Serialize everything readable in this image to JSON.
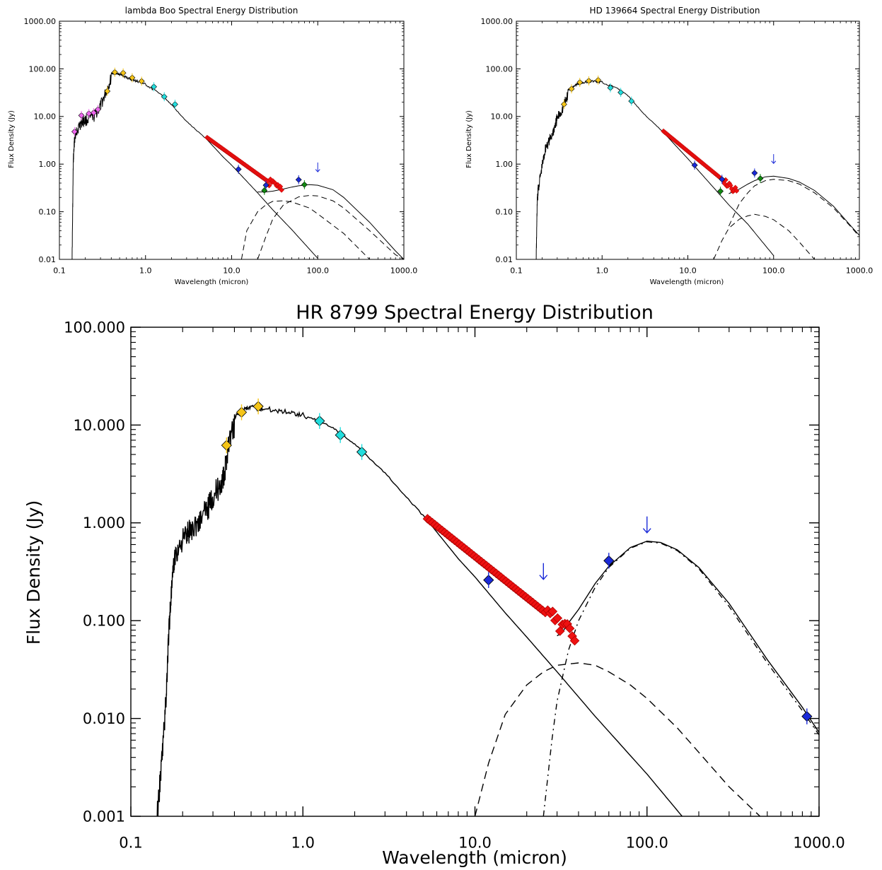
{
  "chart_data": [
    {
      "id": "lambda_boo",
      "type": "scatter",
      "title": "lambda Boo Spectral Energy Distribution",
      "xlabel": "Wavelength (micron)",
      "ylabel": "Flux Density (Jy)",
      "xlog": true,
      "ylog": true,
      "xlim": [
        0.1,
        1000
      ],
      "ylim": [
        0.01,
        1000
      ],
      "xticks": [
        {
          "v": 0.1,
          "label": "0.1"
        },
        {
          "v": 1,
          "label": "1.0"
        },
        {
          "v": 10,
          "label": "10.0"
        },
        {
          "v": 100,
          "label": "100.0"
        },
        {
          "v": 1000,
          "label": "1000.0"
        }
      ],
      "yticks": [
        {
          "v": 0.01,
          "label": "0.01"
        },
        {
          "v": 0.1,
          "label": "0.10"
        },
        {
          "v": 1,
          "label": "1.00"
        },
        {
          "v": 10,
          "label": "10.00"
        },
        {
          "v": 100,
          "label": "100.00"
        },
        {
          "v": 1000,
          "label": "1000.00"
        }
      ],
      "photosphere": {
        "x": [
          0.14,
          0.145,
          0.15,
          0.16,
          0.18,
          0.2,
          0.25,
          0.3,
          0.35,
          0.4,
          0.45,
          0.5,
          0.6,
          0.7,
          0.8,
          1,
          1.5,
          2,
          3,
          5,
          8,
          10,
          20,
          30,
          50,
          100
        ],
        "y": [
          0.01,
          1.5,
          4.5,
          7,
          10,
          11,
          13,
          22,
          45,
          85,
          87,
          80,
          70,
          62,
          58,
          50,
          30,
          18,
          8,
          3.5,
          1.4,
          0.95,
          0.25,
          0.11,
          0.042,
          0.0105
        ]
      },
      "components": [
        {
          "style": "dashed",
          "x": [
            13,
            15,
            20,
            25,
            30,
            40,
            50,
            80,
            100,
            200,
            400,
            600
          ],
          "y": [
            0.01,
            0.04,
            0.1,
            0.14,
            0.165,
            0.17,
            0.16,
            0.12,
            0.09,
            0.035,
            0.01,
            0.004
          ]
        },
        {
          "style": "dashed",
          "x": [
            20,
            25,
            30,
            40,
            60,
            80,
            100,
            150,
            200,
            400,
            800,
            1000
          ],
          "y": [
            0.01,
            0.03,
            0.07,
            0.14,
            0.205,
            0.22,
            0.215,
            0.17,
            0.12,
            0.04,
            0.0125,
            0.01
          ]
        }
      ],
      "total": {
        "x": [
          20,
          25,
          30,
          40,
          50,
          60,
          80,
          100,
          150,
          200,
          400,
          800,
          1000
        ],
        "y": [
          0.26,
          0.26,
          0.27,
          0.3,
          0.33,
          0.35,
          0.37,
          0.36,
          0.29,
          0.2,
          0.06,
          0.015,
          0.01
        ]
      },
      "spectrum": {
        "x1": 5.2,
        "x2": 38,
        "y1": 3.6,
        "y2": 0.27
      },
      "points": [
        {
          "x": 0.15,
          "y": 4.8,
          "color": "#ee66ee"
        },
        {
          "x": 0.18,
          "y": 10.5,
          "color": "#ee66ee"
        },
        {
          "x": 0.22,
          "y": 11.5,
          "color": "#ee66ee"
        },
        {
          "x": 0.25,
          "y": 12,
          "color": "#ee66ee"
        },
        {
          "x": 0.28,
          "y": 14,
          "color": "#ee66ee"
        },
        {
          "x": 0.36,
          "y": 34,
          "color": "#f5c518"
        },
        {
          "x": 0.44,
          "y": 85,
          "color": "#f5c518"
        },
        {
          "x": 0.55,
          "y": 82,
          "color": "#f5c518"
        },
        {
          "x": 0.7,
          "y": 65,
          "color": "#f5c518"
        },
        {
          "x": 0.9,
          "y": 55,
          "color": "#f5c518"
        },
        {
          "x": 1.25,
          "y": 42,
          "color": "#22dddd"
        },
        {
          "x": 1.65,
          "y": 26,
          "color": "#22dddd"
        },
        {
          "x": 2.2,
          "y": 18,
          "color": "#22dddd"
        },
        {
          "x": 12,
          "y": 0.78,
          "color": "#1a2ad8"
        },
        {
          "x": 25,
          "y": 0.36,
          "color": "#1a2ad8"
        },
        {
          "x": 60,
          "y": 0.47,
          "color": "#1a2ad8"
        },
        {
          "x": 24,
          "y": 0.28,
          "color": "#118811"
        },
        {
          "x": 70,
          "y": 0.37,
          "color": "#118811"
        }
      ],
      "upper_limits": [
        {
          "x": 100,
          "y": 0.8
        }
      ]
    },
    {
      "id": "hd_139664",
      "type": "scatter",
      "title": "HD 139664 Spectral Energy Distribution",
      "xlabel": "Wavelength (micron)",
      "ylabel": "Flux Density (Jy)",
      "xlog": true,
      "ylog": true,
      "xlim": [
        0.1,
        1000
      ],
      "ylim": [
        0.01,
        1000
      ],
      "xticks": [
        {
          "v": 0.1,
          "label": "0.1"
        },
        {
          "v": 1,
          "label": "1.0"
        },
        {
          "v": 10,
          "label": "10.0"
        },
        {
          "v": 100,
          "label": "100.0"
        },
        {
          "v": 1000,
          "label": "1000.0"
        }
      ],
      "yticks": [
        {
          "v": 0.01,
          "label": "0.01"
        },
        {
          "v": 0.1,
          "label": "0.10"
        },
        {
          "v": 1,
          "label": "1.00"
        },
        {
          "v": 10,
          "label": "10.00"
        },
        {
          "v": 100,
          "label": "100.00"
        },
        {
          "v": 1000,
          "label": "1000.00"
        }
      ],
      "photosphere": {
        "x": [
          0.17,
          0.175,
          0.18,
          0.2,
          0.22,
          0.25,
          0.28,
          0.3,
          0.35,
          0.4,
          0.5,
          0.6,
          0.8,
          1,
          1.5,
          2,
          3,
          5,
          8,
          10,
          20,
          30,
          50,
          100
        ],
        "y": [
          0.01,
          0.2,
          0.4,
          1.2,
          3,
          4.5,
          8,
          12,
          20,
          38,
          50,
          55,
          58,
          55,
          40,
          28,
          12,
          5,
          2,
          1.3,
          0.32,
          0.14,
          0.055,
          0.012
        ]
      },
      "components": [
        {
          "style": "dashed",
          "x": [
            20,
            25,
            30,
            40,
            50,
            60,
            80,
            100,
            150,
            200,
            300,
            400
          ],
          "y": [
            0.01,
            0.025,
            0.045,
            0.07,
            0.082,
            0.088,
            0.08,
            0.068,
            0.04,
            0.023,
            0.01,
            0.0055
          ]
        },
        {
          "style": "dashed",
          "x": [
            30,
            40,
            50,
            60,
            80,
            100,
            150,
            200,
            300,
            500,
            800,
            1000
          ],
          "y": [
            0.05,
            0.15,
            0.25,
            0.35,
            0.45,
            0.48,
            0.45,
            0.38,
            0.25,
            0.12,
            0.048,
            0.03
          ]
        }
      ],
      "total": {
        "x": [
          30,
          35,
          40,
          50,
          60,
          70,
          80,
          100,
          150,
          200,
          300,
          500,
          800,
          1000
        ],
        "y": [
          0.24,
          0.27,
          0.3,
          0.38,
          0.45,
          0.5,
          0.54,
          0.56,
          0.5,
          0.42,
          0.28,
          0.13,
          0.05,
          0.032
        ]
      },
      "spectrum": {
        "x1": 5.2,
        "x2": 37,
        "y1": 4.9,
        "y2": 0.27
      },
      "points": [
        {
          "x": 0.36,
          "y": 18,
          "color": "#f5c518"
        },
        {
          "x": 0.44,
          "y": 38,
          "color": "#f5c518"
        },
        {
          "x": 0.55,
          "y": 52,
          "color": "#f5c518"
        },
        {
          "x": 0.7,
          "y": 56,
          "color": "#f5c518"
        },
        {
          "x": 0.9,
          "y": 58,
          "color": "#f5c518"
        },
        {
          "x": 1.25,
          "y": 40,
          "color": "#22dddd"
        },
        {
          "x": 1.65,
          "y": 32,
          "color": "#22dddd"
        },
        {
          "x": 2.2,
          "y": 21,
          "color": "#22dddd"
        },
        {
          "x": 12,
          "y": 0.95,
          "color": "#1a2ad8"
        },
        {
          "x": 25,
          "y": 0.48,
          "color": "#1a2ad8"
        },
        {
          "x": 60,
          "y": 0.65,
          "color": "#1a2ad8"
        },
        {
          "x": 24,
          "y": 0.27,
          "color": "#118811"
        },
        {
          "x": 70,
          "y": 0.5,
          "color": "#118811"
        }
      ],
      "upper_limits": [
        {
          "x": 100,
          "y": 1.2
        }
      ]
    },
    {
      "id": "hr_8799",
      "type": "scatter",
      "title": "HR 8799 Spectral Energy Distribution",
      "xlabel": "Wavelength (micron)",
      "ylabel": "Flux Density (Jy)",
      "xlog": true,
      "ylog": true,
      "xlim": [
        0.1,
        1000
      ],
      "ylim": [
        0.001,
        100
      ],
      "xticks": [
        {
          "v": 0.1,
          "label": "0.1"
        },
        {
          "v": 1,
          "label": "1.0"
        },
        {
          "v": 10,
          "label": "10.0"
        },
        {
          "v": 100,
          "label": "100.0"
        },
        {
          "v": 1000,
          "label": "1000.0"
        }
      ],
      "yticks": [
        {
          "v": 0.001,
          "label": "0.001"
        },
        {
          "v": 0.01,
          "label": "0.010"
        },
        {
          "v": 0.1,
          "label": "0.100"
        },
        {
          "v": 1,
          "label": "1.000"
        },
        {
          "v": 10,
          "label": "10.000"
        },
        {
          "v": 100,
          "label": "100.000"
        }
      ],
      "photosphere": {
        "x": [
          0.14,
          0.15,
          0.16,
          0.165,
          0.17,
          0.18,
          0.2,
          0.22,
          0.25,
          0.28,
          0.3,
          0.33,
          0.35,
          0.37,
          0.4,
          0.45,
          0.5,
          0.6,
          0.8,
          1,
          1.5,
          2,
          3,
          5,
          8,
          10,
          15,
          20,
          30,
          50,
          100,
          160
        ],
        "y": [
          0.001,
          0.004,
          0.02,
          0.08,
          0.2,
          0.6,
          0.9,
          1.1,
          1.4,
          1.9,
          2.5,
          3.2,
          4,
          9,
          13,
          15,
          16,
          15.5,
          14.5,
          13.5,
          9.5,
          6.5,
          3.3,
          1.2,
          0.43,
          0.28,
          0.12,
          0.068,
          0.03,
          0.0105,
          0.0027,
          0.001
        ]
      },
      "components": [
        {
          "style": "dashed",
          "x": [
            10,
            12,
            15,
            20,
            25,
            30,
            40,
            50,
            60,
            80,
            100,
            150,
            200,
            300,
            500,
            800
          ],
          "y": [
            0.001,
            0.0035,
            0.011,
            0.022,
            0.03,
            0.035,
            0.037,
            0.035,
            0.03,
            0.022,
            0.016,
            0.008,
            0.0045,
            0.002,
            0.00085,
            0.0003
          ]
        },
        {
          "style": "dashdot",
          "x": [
            25,
            28,
            30,
            35,
            40,
            50,
            60,
            80,
            100,
            120,
            150,
            200,
            300,
            500,
            800,
            1000
          ],
          "y": [
            0.001,
            0.006,
            0.015,
            0.05,
            0.1,
            0.22,
            0.35,
            0.55,
            0.64,
            0.62,
            0.52,
            0.34,
            0.14,
            0.037,
            0.012,
            0.0068
          ]
        }
      ],
      "total": {
        "x": [
          30,
          32,
          35,
          40,
          50,
          60,
          80,
          100,
          120,
          150,
          200,
          300,
          500,
          800,
          1000
        ],
        "y": [
          0.07,
          0.075,
          0.095,
          0.13,
          0.24,
          0.36,
          0.56,
          0.65,
          0.63,
          0.53,
          0.35,
          0.15,
          0.04,
          0.013,
          0.0072
        ]
      },
      "spectrum": {
        "x1": 5.3,
        "x2": 38,
        "y1": 1.1,
        "y2": 0.07
      },
      "points": [
        {
          "x": 0.36,
          "y": 6.2,
          "color": "#f5c518"
        },
        {
          "x": 0.44,
          "y": 13.5,
          "color": "#f5c518"
        },
        {
          "x": 0.55,
          "y": 15.5,
          "color": "#f5c518"
        },
        {
          "x": 1.25,
          "y": 11,
          "color": "#22dddd"
        },
        {
          "x": 1.65,
          "y": 7.9,
          "color": "#22dddd"
        },
        {
          "x": 2.2,
          "y": 5.3,
          "color": "#22dddd"
        },
        {
          "x": 12,
          "y": 0.26,
          "color": "#1a2ad8"
        },
        {
          "x": 60,
          "y": 0.41,
          "color": "#1a2ad8"
        },
        {
          "x": 850,
          "y": 0.0105,
          "color": "#1a2ad8"
        }
      ],
      "upper_limits": [
        {
          "x": 25,
          "y": 0.3
        },
        {
          "x": 100,
          "y": 0.9
        }
      ]
    }
  ]
}
